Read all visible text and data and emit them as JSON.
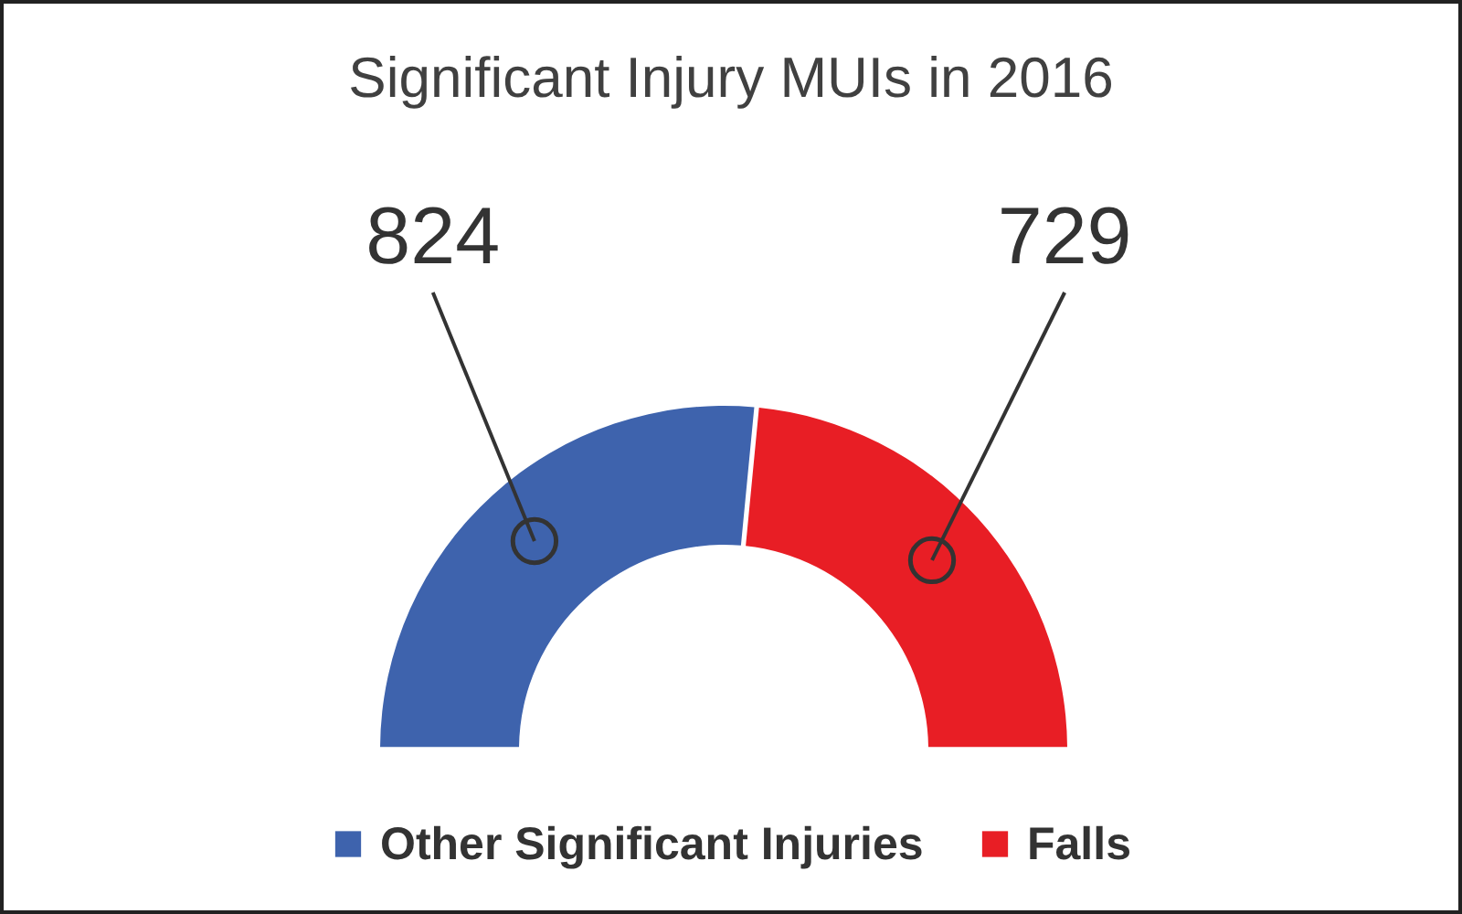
{
  "chart_data": {
    "type": "donut",
    "title": "Significant Injury MUIs in 2016",
    "categories": [
      "Other Significant Injuries",
      "Falls"
    ],
    "values": [
      824,
      729
    ],
    "colors": [
      "#3e63ad",
      "#e81e25"
    ],
    "data_labels": true,
    "legend": "bottom"
  }
}
